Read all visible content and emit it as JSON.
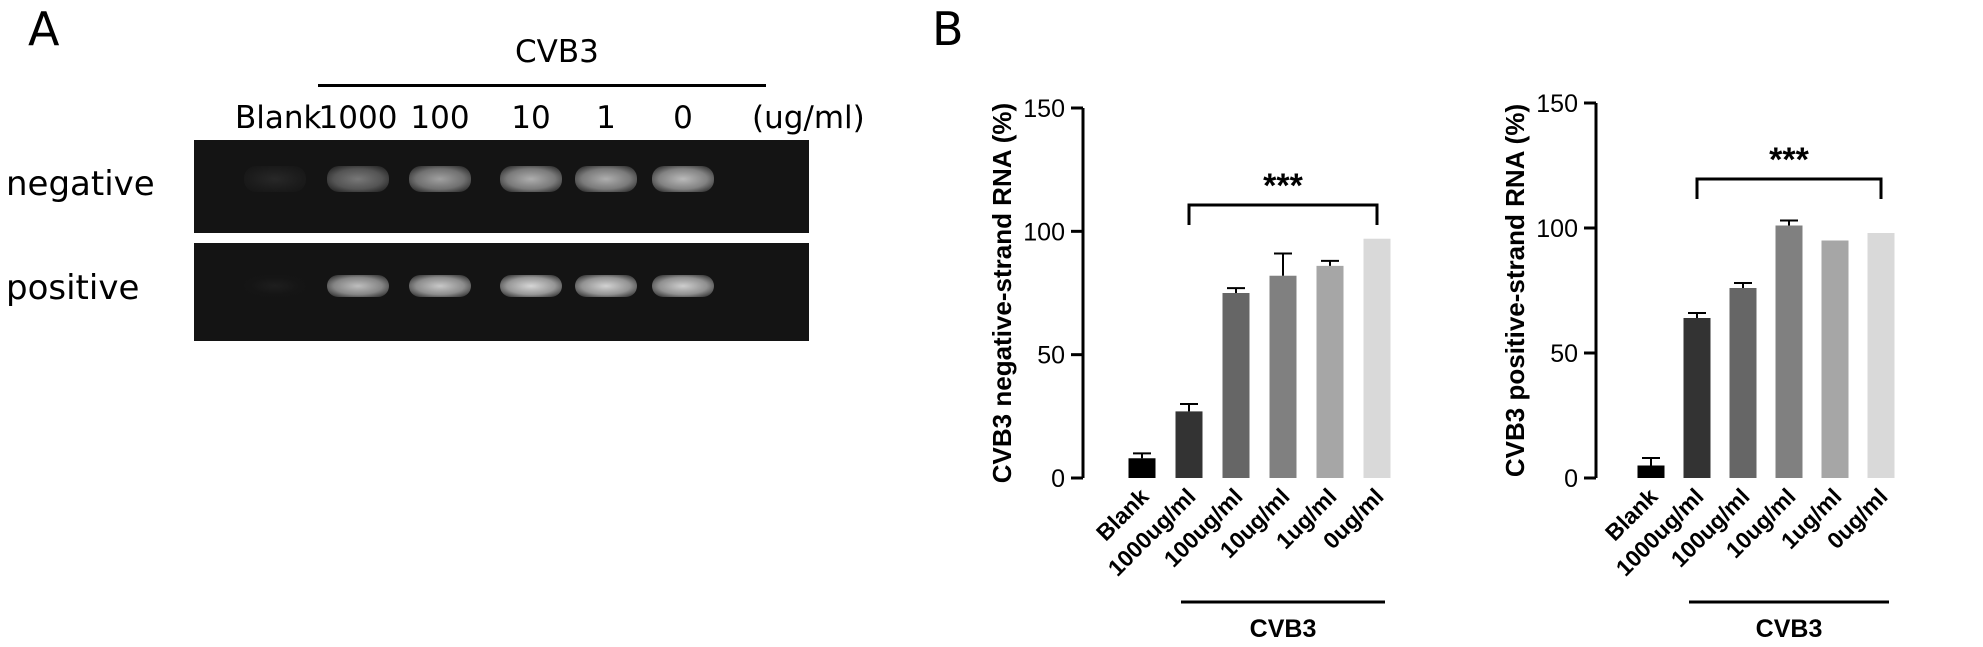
{
  "panel_a": {
    "letter": "A",
    "group_label": "CVB3",
    "lanes": [
      "Blank",
      "1000",
      "100",
      "10",
      "1",
      "0"
    ],
    "unit": "(ug/ml)",
    "rows": [
      {
        "label": "negative",
        "intensity": [
          0.05,
          0.45,
          0.65,
          0.72,
          0.72,
          0.78
        ]
      },
      {
        "label": "positive",
        "intensity": [
          0.0,
          0.8,
          0.85,
          0.92,
          0.9,
          0.88
        ]
      }
    ]
  },
  "panel_b": {
    "letter": "B"
  },
  "chart_data": [
    {
      "type": "bar",
      "ylabel": "CVB3 negative-strand RNA (%)",
      "categories": [
        "Blank",
        "1000ug/ml",
        "100ug/ml",
        "10ug/ml",
        "1ug/ml",
        "0ug/ml"
      ],
      "values": [
        8,
        27,
        75,
        82,
        86,
        97
      ],
      "errors": [
        2,
        3,
        2,
        9,
        2,
        0
      ],
      "ylim": [
        0,
        150
      ],
      "yticks": [
        0,
        50,
        100,
        150
      ],
      "colors": [
        "#000000",
        "#333333",
        "#666666",
        "#808080",
        "#a6a6a6",
        "#d9d9d9"
      ],
      "significance": {
        "label": "***",
        "from": 1,
        "to": 5
      },
      "group_label": "CVB3"
    },
    {
      "type": "bar",
      "ylabel": "CVB3 positive-strand RNA (%)",
      "categories": [
        "Blank",
        "1000ug/ml",
        "100ug/ml",
        "10ug/ml",
        "1ug/ml",
        "0ug/ml"
      ],
      "values": [
        5,
        64,
        76,
        101,
        95,
        98
      ],
      "errors": [
        3,
        2,
        2,
        2,
        0,
        0
      ],
      "ylim": [
        0,
        150
      ],
      "yticks": [
        0,
        50,
        100,
        150
      ],
      "colors": [
        "#000000",
        "#333333",
        "#666666",
        "#808080",
        "#a6a6a6",
        "#d9d9d9"
      ],
      "significance": {
        "label": "***",
        "from": 1,
        "to": 5
      },
      "group_label": "CVB3"
    }
  ]
}
